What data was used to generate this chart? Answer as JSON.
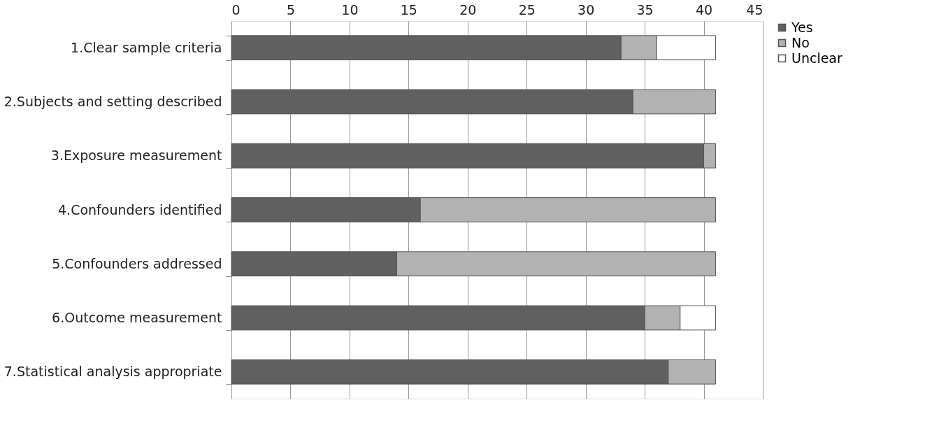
{
  "chart_data": {
    "type": "bar",
    "orientation": "horizontal",
    "stacked": true,
    "categories": [
      "1.Clear sample criteria",
      "2.Subjects and setting described",
      "3.Exposure measurement",
      "4.Confounders identified",
      "5.Confounders addressed",
      "6.Outcome measurement",
      "7.Statistical analysis appropriate"
    ],
    "series": [
      {
        "name": "Yes",
        "color": "#606060",
        "values": [
          33,
          34,
          40,
          16,
          14,
          35,
          37
        ]
      },
      {
        "name": "No",
        "color": "#b2b2b2",
        "values": [
          3,
          7,
          1,
          25,
          27,
          3,
          4
        ]
      },
      {
        "name": "Unclear",
        "color": "#ffffff",
        "values": [
          5,
          null,
          null,
          null,
          null,
          3,
          null
        ]
      }
    ],
    "xlim": [
      0,
      45
    ],
    "xticks": [
      0,
      5,
      10,
      15,
      20,
      25,
      30,
      35,
      40,
      45
    ],
    "grid": "x",
    "legend": "right"
  }
}
